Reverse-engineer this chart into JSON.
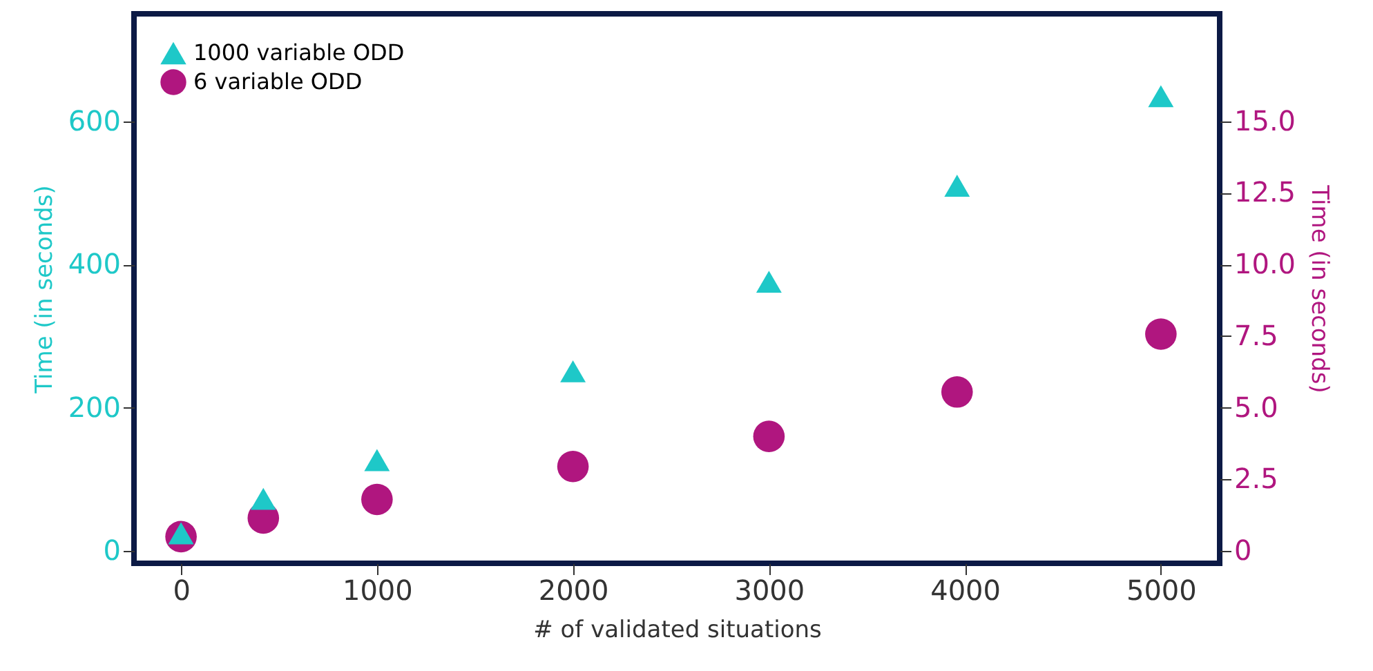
{
  "chart_data": {
    "type": "scatter",
    "xlabel": "# of validated situations",
    "ylabel": "Time (in seconds)",
    "y2label": "Time (in seconds)",
    "x": [
      0,
      420,
      1000,
      2000,
      3000,
      3960,
      5000
    ],
    "series": [
      {
        "name": "1000 variable ODD",
        "color": "#1ec8c8",
        "marker": "triangle",
        "values": [
          25,
          73,
          127,
          251,
          376,
          510,
          635
        ]
      },
      {
        "name": "6 variable ODD",
        "color": "#b0167f",
        "marker": "circle",
        "axis": "y2",
        "values": [
          0.5,
          1.15,
          1.8,
          2.95,
          4.0,
          5.55,
          7.57
        ]
      }
    ],
    "xlim": [
      -240,
      5300
    ],
    "xticks": [
      0,
      1000,
      2000,
      3000,
      4000,
      5000
    ],
    "ylim": [
      -17,
      750
    ],
    "yticks": [
      0,
      200,
      400,
      600
    ],
    "y2lim": [
      -0.43,
      18.75
    ],
    "y2ticks": [
      {
        "value": 0,
        "label": "0"
      },
      {
        "value": 2.5,
        "label": "2.5"
      },
      {
        "value": 5,
        "label": "5.0"
      },
      {
        "value": 7.5,
        "label": "7.5"
      },
      {
        "value": 10,
        "label": "10.0"
      },
      {
        "value": 12.5,
        "label": "12.5"
      },
      {
        "value": 15,
        "label": "15.0"
      }
    ],
    "grid": false,
    "legend": "top left"
  }
}
